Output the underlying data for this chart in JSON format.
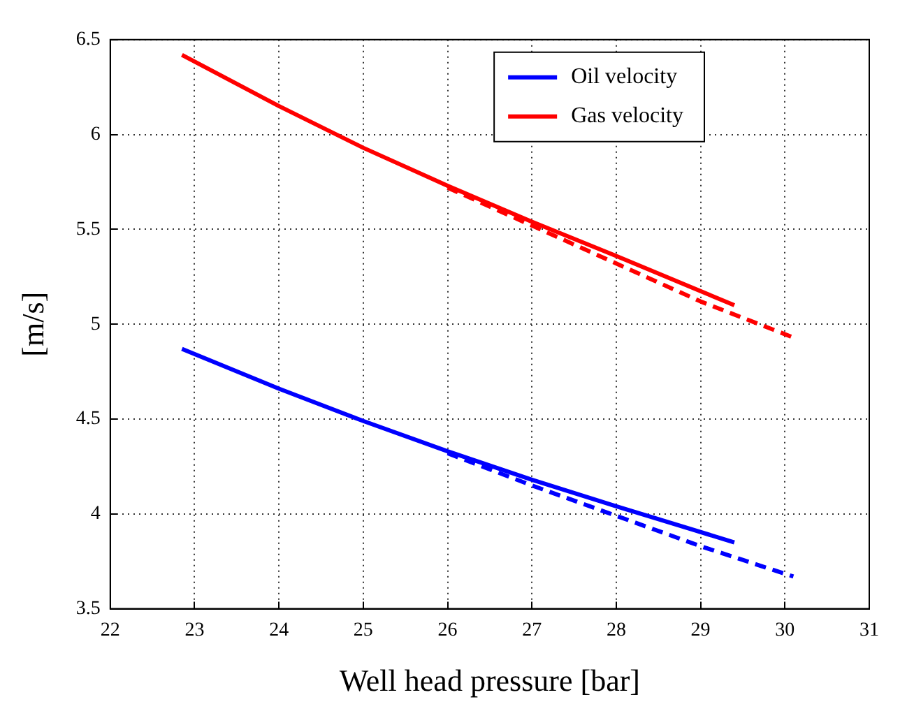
{
  "chart_data": {
    "type": "line",
    "xlabel": "Well head pressure [bar]",
    "ylabel": "[m/s]",
    "xlim": [
      22,
      31
    ],
    "xticks": [
      22,
      23,
      24,
      25,
      26,
      27,
      28,
      29,
      30,
      31
    ],
    "ylim": [
      3.5,
      6.5
    ],
    "yticks": [
      3.5,
      4,
      4.5,
      5,
      5.5,
      6,
      6.5
    ],
    "grid": true,
    "legend": "top right",
    "marker": "none",
    "series": [
      {
        "name": "Oil velocity",
        "color": "#0000ff",
        "line_style": "solid",
        "x": [
          22.85,
          24,
          25,
          26,
          27,
          28,
          29.4
        ],
        "values": [
          4.87,
          4.66,
          4.49,
          4.33,
          4.18,
          4.04,
          3.85
        ]
      },
      {
        "name": "Gas velocity",
        "color": "#ff0000",
        "line_style": "solid",
        "x": [
          22.85,
          24,
          25,
          26,
          27,
          28,
          29.4
        ],
        "values": [
          6.42,
          6.15,
          5.93,
          5.73,
          5.54,
          5.36,
          5.1
        ]
      },
      {
        "color": "#0000ff",
        "line_style": "dashed",
        "x": [
          26,
          27,
          28,
          29,
          30.1
        ],
        "values": [
          4.32,
          4.15,
          3.99,
          3.83,
          3.67
        ]
      },
      {
        "color": "#ff0000",
        "line_style": "dashed",
        "x": [
          26,
          27,
          28,
          29,
          30.1
        ],
        "values": [
          5.72,
          5.52,
          5.32,
          5.12,
          4.93
        ]
      }
    ]
  }
}
